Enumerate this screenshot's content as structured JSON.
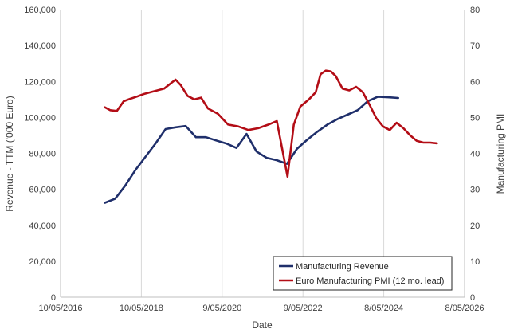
{
  "chart_data": {
    "type": "line",
    "xlabel": "Date",
    "ylabel_left": "Revenue - TTM ('000 Euro)",
    "ylabel_right": "Manufacturing PMI",
    "x_ticks": [
      "10/05/2016",
      "10/05/2018",
      "9/05/2020",
      "9/05/2022",
      "8/05/2024",
      "8/05/2026"
    ],
    "y_left_ticks": [
      "0",
      "20,000",
      "40,000",
      "60,000",
      "80,000",
      "100,000",
      "120,000",
      "140,000",
      "160,000"
    ],
    "y_right_ticks": [
      "0",
      "10",
      "20",
      "30",
      "40",
      "50",
      "60",
      "70",
      "80"
    ],
    "y_left_range": [
      0,
      160000
    ],
    "y_right_range": [
      0,
      80
    ],
    "x_range": [
      "2016-05-10",
      "2026-05-08"
    ],
    "grid": "vertical",
    "legend": {
      "position": "bottom-right"
    },
    "colors": {
      "revenue": "#1f2f6b",
      "pmi": "#b30d16",
      "grid": "#d9d9d9",
      "axis": "#bfbfbf"
    },
    "series": [
      {
        "name": "Manufacturing Revenue",
        "axis": "left",
        "points": [
          [
            "2017-06-15",
            52500
          ],
          [
            "2017-09-15",
            54800
          ],
          [
            "2017-12-15",
            62000
          ],
          [
            "2018-03-15",
            70500
          ],
          [
            "2018-06-15",
            78000
          ],
          [
            "2018-09-15",
            85500
          ],
          [
            "2018-12-15",
            93500
          ],
          [
            "2019-03-15",
            94500
          ],
          [
            "2019-06-15",
            95200
          ],
          [
            "2019-09-15",
            89000
          ],
          [
            "2019-12-15",
            89000
          ],
          [
            "2020-03-15",
            87200
          ],
          [
            "2020-06-15",
            85500
          ],
          [
            "2020-09-15",
            83000
          ],
          [
            "2020-12-15",
            90800
          ],
          [
            "2021-03-15",
            81000
          ],
          [
            "2021-06-15",
            77500
          ],
          [
            "2021-09-15",
            76200
          ],
          [
            "2021-12-15",
            74200
          ],
          [
            "2022-03-15",
            82500
          ],
          [
            "2022-06-15",
            87500
          ],
          [
            "2022-09-15",
            92000
          ],
          [
            "2022-12-15",
            96000
          ],
          [
            "2023-03-15",
            99000
          ],
          [
            "2023-06-15",
            101500
          ],
          [
            "2023-09-15",
            104000
          ],
          [
            "2023-12-15",
            109000
          ],
          [
            "2024-03-15",
            111500
          ],
          [
            "2024-06-15",
            111200
          ],
          [
            "2024-09-15",
            110800
          ]
        ]
      },
      {
        "name": "Euro Manufacturing PMI (12 mo. lead)",
        "axis": "right",
        "points": [
          [
            "2017-06-15",
            52.8
          ],
          [
            "2017-08-01",
            52.0
          ],
          [
            "2017-10-01",
            51.8
          ],
          [
            "2017-12-01",
            54.5
          ],
          [
            "2018-02-01",
            55.2
          ],
          [
            "2018-04-01",
            55.8
          ],
          [
            "2018-06-01",
            56.5
          ],
          [
            "2018-08-01",
            57.0
          ],
          [
            "2018-10-01",
            57.5
          ],
          [
            "2018-12-01",
            58.0
          ],
          [
            "2019-02-01",
            59.5
          ],
          [
            "2019-03-15",
            60.5
          ],
          [
            "2019-05-01",
            59.0
          ],
          [
            "2019-07-01",
            56.0
          ],
          [
            "2019-09-01",
            55.0
          ],
          [
            "2019-11-01",
            55.5
          ],
          [
            "2020-01-01",
            52.5
          ],
          [
            "2020-04-01",
            51.0
          ],
          [
            "2020-07-01",
            48.0
          ],
          [
            "2020-10-01",
            47.5
          ],
          [
            "2021-01-01",
            46.5
          ],
          [
            "2021-04-01",
            47.0
          ],
          [
            "2021-07-01",
            48.0
          ],
          [
            "2021-09-15",
            49.0
          ],
          [
            "2021-11-01",
            41.5
          ],
          [
            "2021-12-20",
            33.5
          ],
          [
            "2022-02-15",
            48.0
          ],
          [
            "2022-04-15",
            53.0
          ],
          [
            "2022-07-01",
            55.0
          ],
          [
            "2022-09-01",
            57.0
          ],
          [
            "2022-10-15",
            62.0
          ],
          [
            "2022-12-01",
            63.0
          ],
          [
            "2023-01-15",
            62.8
          ],
          [
            "2023-03-01",
            61.5
          ],
          [
            "2023-05-01",
            58.0
          ],
          [
            "2023-07-01",
            57.5
          ],
          [
            "2023-09-01",
            58.5
          ],
          [
            "2023-11-01",
            57.0
          ],
          [
            "2024-01-01",
            53.5
          ],
          [
            "2024-03-01",
            49.8
          ],
          [
            "2024-05-01",
            47.5
          ],
          [
            "2024-07-01",
            46.5
          ],
          [
            "2024-09-01",
            48.5
          ],
          [
            "2024-11-01",
            47.0
          ],
          [
            "2025-01-01",
            45.0
          ],
          [
            "2025-03-01",
            43.5
          ],
          [
            "2025-05-01",
            43.0
          ],
          [
            "2025-07-01",
            43.0
          ],
          [
            "2025-09-01",
            42.8
          ]
        ]
      }
    ]
  }
}
